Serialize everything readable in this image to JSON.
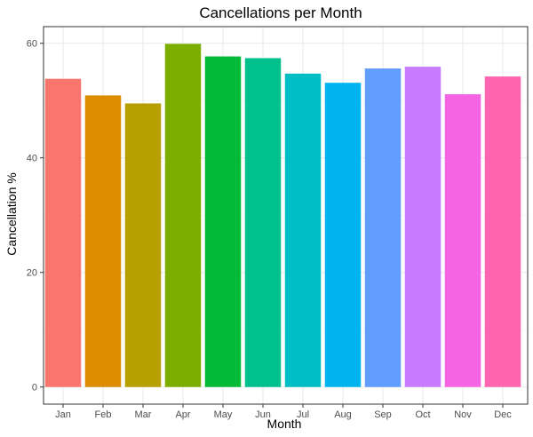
{
  "chart_data": {
    "type": "bar",
    "title": "Cancellations per Month",
    "xlabel": "Month",
    "ylabel": "Cancellation %",
    "categories": [
      "Jan",
      "Feb",
      "Mar",
      "Apr",
      "May",
      "Jun",
      "Jul",
      "Aug",
      "Sep",
      "Oct",
      "Nov",
      "Dec"
    ],
    "values": [
      53.8,
      50.9,
      49.5,
      59.9,
      57.7,
      57.4,
      54.7,
      53.1,
      55.6,
      55.9,
      51.1,
      54.2
    ],
    "colors": [
      "#F8766D",
      "#DE8C00",
      "#B79F00",
      "#7CAE00",
      "#00BA38",
      "#00C08B",
      "#00BFC4",
      "#00B4F0",
      "#619CFF",
      "#C77CFF",
      "#F564E3",
      "#FF64B0"
    ],
    "ylim": [
      -2.99,
      62.9
    ],
    "yticks": [
      0,
      20,
      40,
      60
    ],
    "grid": true,
    "legend": "none"
  }
}
